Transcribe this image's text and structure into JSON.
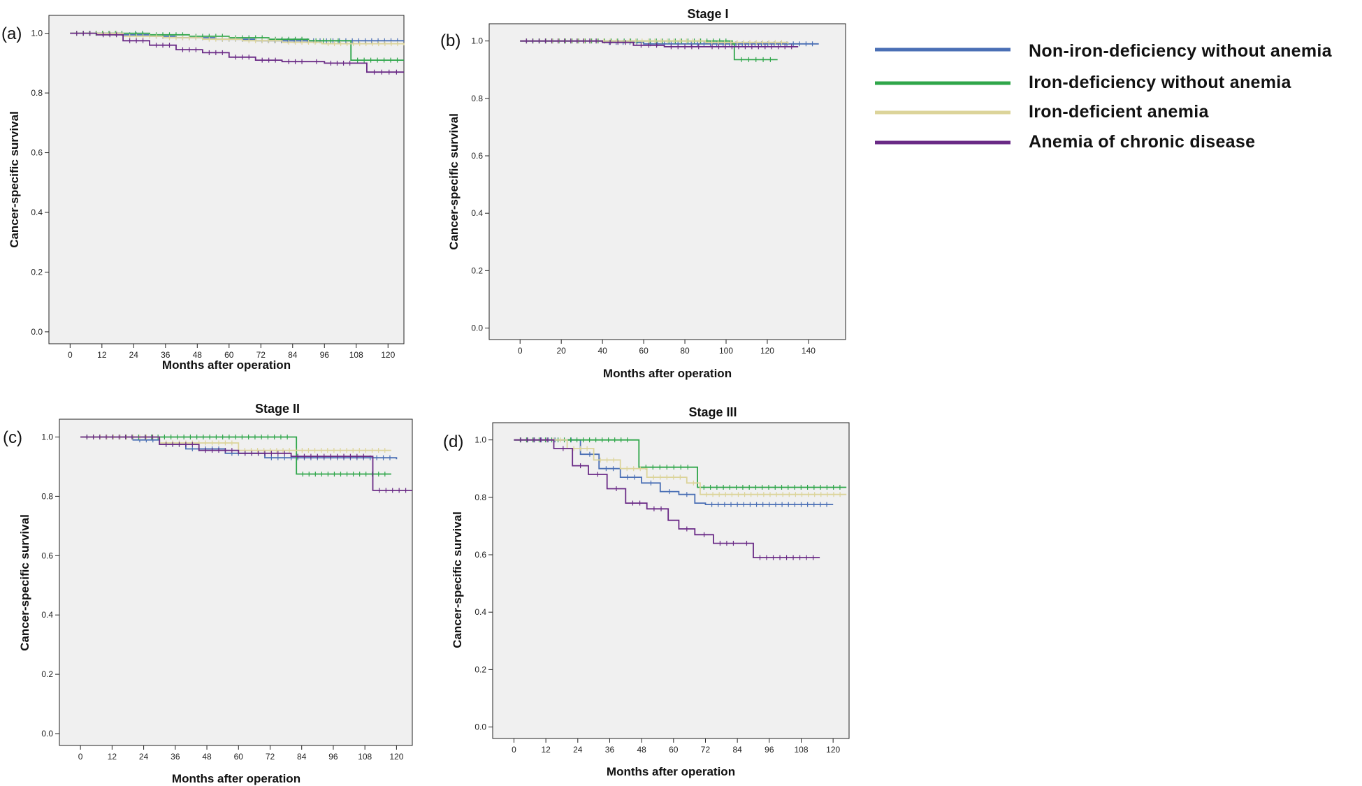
{
  "legend": [
    {
      "label": "Non-iron-deficiency without anemia",
      "color": "#4a6fb5"
    },
    {
      "label": "Iron-deficiency without anemia",
      "color": "#2fa64a"
    },
    {
      "label": "Iron-deficient anemia",
      "color": "#dcd49a"
    },
    {
      "label": "Anemia of chronic disease",
      "color": "#6a2a86"
    }
  ],
  "chart_data": [
    {
      "id": "a",
      "panel_label": "(a)",
      "title": "",
      "type": "line",
      "xlabel": "Months after operation",
      "ylabel": "Cancer-specific survival",
      "xlim": [
        -8,
        126
      ],
      "ylim": [
        -0.04,
        1.06
      ],
      "xticks": [
        0,
        12,
        24,
        36,
        48,
        60,
        72,
        84,
        96,
        108,
        120
      ],
      "yticks": [
        0.0,
        0.2,
        0.4,
        0.6,
        0.8,
        1.0
      ],
      "series": [
        {
          "name": "Non-iron-deficiency without anemia",
          "color": "#4a6fb5",
          "x": [
            0,
            20,
            30,
            40,
            55,
            70,
            126
          ],
          "y": [
            1.0,
            0.995,
            0.99,
            0.985,
            0.98,
            0.975,
            0.975
          ]
        },
        {
          "name": "Iron-deficiency without anemia",
          "color": "#2fa64a",
          "x": [
            0,
            22,
            30,
            45,
            60,
            75,
            90,
            104,
            106,
            126
          ],
          "y": [
            1.0,
            1.0,
            0.995,
            0.99,
            0.985,
            0.98,
            0.975,
            0.975,
            0.91,
            0.91
          ]
        },
        {
          "name": "Iron-deficient anemia",
          "color": "#dcd49a",
          "x": [
            0,
            20,
            35,
            50,
            65,
            80,
            95,
            126
          ],
          "y": [
            1.0,
            0.99,
            0.985,
            0.98,
            0.975,
            0.97,
            0.965,
            0.96
          ]
        },
        {
          "name": "Anemia of chronic disease",
          "color": "#6a2a86",
          "x": [
            0,
            10,
            20,
            30,
            40,
            50,
            60,
            70,
            80,
            90,
            96,
            108,
            112,
            126
          ],
          "y": [
            1.0,
            0.995,
            0.975,
            0.96,
            0.945,
            0.935,
            0.92,
            0.91,
            0.905,
            0.905,
            0.9,
            0.9,
            0.87,
            0.87
          ]
        }
      ]
    },
    {
      "id": "b",
      "panel_label": "(b)",
      "title": "Stage I",
      "type": "line",
      "xlabel": "Months after operation",
      "ylabel": "Cancer-specific survival",
      "xlim": [
        -15,
        158
      ],
      "ylim": [
        -0.04,
        1.06
      ],
      "xticks": [
        0,
        20,
        40,
        60,
        80,
        100,
        120,
        140
      ],
      "yticks": [
        0.0,
        0.2,
        0.4,
        0.6,
        0.8,
        1.0
      ],
      "series": [
        {
          "name": "Non-iron-deficiency without anemia",
          "color": "#4a6fb5",
          "x": [
            0,
            40,
            60,
            80,
            145
          ],
          "y": [
            1.0,
            0.995,
            0.99,
            0.99,
            0.99
          ]
        },
        {
          "name": "Iron-deficiency without anemia",
          "color": "#2fa64a",
          "x": [
            0,
            60,
            103,
            104,
            125
          ],
          "y": [
            1.0,
            1.0,
            0.99,
            0.935,
            0.935
          ]
        },
        {
          "name": "Iron-deficient anemia",
          "color": "#dcd49a",
          "x": [
            0,
            50,
            90,
            130
          ],
          "y": [
            1.0,
            1.0,
            0.995,
            0.99
          ]
        },
        {
          "name": "Anemia of chronic disease",
          "color": "#6a2a86",
          "x": [
            0,
            40,
            55,
            70,
            90,
            135
          ],
          "y": [
            1.0,
            0.995,
            0.985,
            0.98,
            0.98,
            0.98
          ]
        }
      ]
    },
    {
      "id": "c",
      "panel_label": "(c)",
      "title": "Stage II",
      "type": "line",
      "xlabel": "Months after operation",
      "ylabel": "Cancer-specific survival",
      "xlim": [
        -8,
        126
      ],
      "ylim": [
        -0.04,
        1.06
      ],
      "xticks": [
        0,
        12,
        24,
        36,
        48,
        60,
        72,
        84,
        96,
        108,
        120
      ],
      "yticks": [
        0.0,
        0.2,
        0.4,
        0.6,
        0.8,
        1.0
      ],
      "series": [
        {
          "name": "Non-iron-deficiency without anemia",
          "color": "#4a6fb5",
          "x": [
            0,
            20,
            30,
            40,
            55,
            70,
            120
          ],
          "y": [
            1.0,
            0.99,
            0.975,
            0.96,
            0.945,
            0.93,
            0.925
          ]
        },
        {
          "name": "Iron-deficiency without anemia",
          "color": "#2fa64a",
          "x": [
            0,
            81,
            82,
            118
          ],
          "y": [
            1.0,
            1.0,
            0.875,
            0.875
          ]
        },
        {
          "name": "Iron-deficient anemia",
          "color": "#dcd49a",
          "x": [
            0,
            30,
            60,
            118
          ],
          "y": [
            1.0,
            0.98,
            0.955,
            0.955
          ]
        },
        {
          "name": "Anemia of chronic disease",
          "color": "#6a2a86",
          "x": [
            0,
            22,
            30,
            45,
            60,
            80,
            110,
            111,
            126
          ],
          "y": [
            1.0,
            1.0,
            0.975,
            0.955,
            0.945,
            0.935,
            0.935,
            0.82,
            0.82
          ]
        }
      ]
    },
    {
      "id": "d",
      "panel_label": "(d)",
      "title": "Stage III",
      "type": "line",
      "xlabel": "Months after operation",
      "ylabel": "Cancer-specific survival",
      "xlim": [
        -8,
        126
      ],
      "ylim": [
        -0.04,
        1.06
      ],
      "xticks": [
        0,
        12,
        24,
        36,
        48,
        60,
        72,
        84,
        96,
        108,
        120
      ],
      "yticks": [
        0.0,
        0.2,
        0.4,
        0.6,
        0.8,
        1.0
      ],
      "series": [
        {
          "name": "Non-iron-deficiency without anemia",
          "color": "#4a6fb5",
          "x": [
            0,
            18,
            25,
            32,
            40,
            48,
            55,
            62,
            68,
            72,
            120
          ],
          "y": [
            1.0,
            1.0,
            0.95,
            0.9,
            0.87,
            0.85,
            0.82,
            0.81,
            0.78,
            0.775,
            0.775
          ]
        },
        {
          "name": "Iron-deficiency without anemia",
          "color": "#2fa64a",
          "x": [
            0,
            45,
            47,
            68,
            69,
            125
          ],
          "y": [
            1.0,
            1.0,
            0.905,
            0.905,
            0.835,
            0.835
          ]
        },
        {
          "name": "Iron-deficient anemia",
          "color": "#dcd49a",
          "x": [
            0,
            20,
            30,
            40,
            50,
            65,
            70,
            125
          ],
          "y": [
            1.0,
            0.97,
            0.93,
            0.9,
            0.87,
            0.85,
            0.81,
            0.81
          ]
        },
        {
          "name": "Anemia of chronic disease",
          "color": "#6a2a86",
          "x": [
            0,
            15,
            22,
            28,
            35,
            42,
            50,
            58,
            62,
            68,
            75,
            85,
            90,
            115
          ],
          "y": [
            1.0,
            0.97,
            0.91,
            0.88,
            0.83,
            0.78,
            0.76,
            0.72,
            0.69,
            0.67,
            0.64,
            0.64,
            0.59,
            0.59
          ]
        }
      ]
    }
  ]
}
